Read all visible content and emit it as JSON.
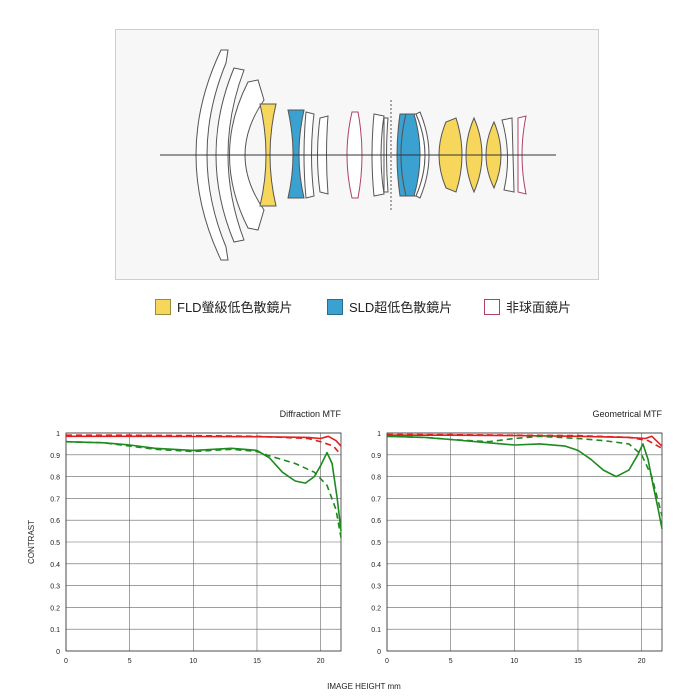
{
  "legend": [
    {
      "label": "FLD螢級低色散鏡片",
      "fill": "#f6d65b",
      "border": "#9a8a40"
    },
    {
      "label": "SLD超低色散鏡片",
      "fill": "#3aa1d0",
      "border": "#2a6c8c"
    },
    {
      "label": "非球面鏡片",
      "fill": "#ffffff",
      "border": "#b0406a"
    }
  ],
  "colors": {
    "red": "#e02020",
    "green": "#1e8a1e",
    "grid": "#666666",
    "lens_outline": "#555555"
  },
  "axis": {
    "xlabel": "IMAGE HEIGHT mm",
    "ylabel": "CONTRAST"
  },
  "chart_data": [
    {
      "type": "line",
      "title": "Diffraction MTF",
      "xlim": [
        0,
        21.6
      ],
      "ylim": [
        0,
        1
      ],
      "xticks": [
        0,
        5,
        10,
        15,
        20
      ],
      "yticks": [
        0,
        0.1,
        0.2,
        0.3,
        0.4,
        0.5,
        0.6,
        0.7,
        0.8,
        0.9,
        1
      ],
      "ytick_labels": [
        "0",
        "0.1",
        "0.2",
        "0.3",
        "0.4",
        "0.5",
        "0.6",
        "0.7",
        "0.8",
        "0.9",
        "1"
      ],
      "grid": true,
      "series": [
        {
          "color": "red",
          "dash": false,
          "x": [
            0,
            5,
            10,
            15,
            19,
            20,
            20.6,
            21.2,
            21.6
          ],
          "y": [
            0.985,
            0.985,
            0.984,
            0.983,
            0.98,
            0.975,
            0.985,
            0.965,
            0.94
          ]
        },
        {
          "color": "red",
          "dash": true,
          "x": [
            0,
            5,
            10,
            15,
            19,
            20,
            21,
            21.6
          ],
          "y": [
            0.99,
            0.99,
            0.988,
            0.985,
            0.975,
            0.96,
            0.94,
            0.9
          ]
        },
        {
          "color": "green",
          "dash": false,
          "x": [
            0,
            3,
            5,
            7,
            10,
            13,
            15,
            16,
            17,
            18,
            18.8,
            19.5,
            20,
            20.5,
            20.9,
            21.3,
            21.6
          ],
          "y": [
            0.96,
            0.955,
            0.945,
            0.93,
            0.92,
            0.93,
            0.92,
            0.885,
            0.82,
            0.78,
            0.77,
            0.8,
            0.85,
            0.91,
            0.86,
            0.7,
            0.55
          ]
        },
        {
          "color": "green",
          "dash": true,
          "x": [
            0,
            3,
            5,
            7,
            10,
            13,
            15,
            16,
            18,
            19.5,
            20.5,
            21.2,
            21.6
          ],
          "y": [
            0.96,
            0.955,
            0.94,
            0.925,
            0.915,
            0.925,
            0.915,
            0.895,
            0.86,
            0.82,
            0.76,
            0.65,
            0.52
          ]
        }
      ]
    },
    {
      "type": "line",
      "title": "Geometrical MTF",
      "xlim": [
        0,
        21.6
      ],
      "ylim": [
        0,
        1
      ],
      "xticks": [
        0,
        5,
        10,
        15,
        20
      ],
      "yticks": [
        0,
        0.1,
        0.2,
        0.3,
        0.4,
        0.5,
        0.6,
        0.7,
        0.8,
        0.9,
        1
      ],
      "ytick_labels": [
        "0",
        "0.1",
        "0.2",
        "0.3",
        "0.4",
        "0.5",
        "0.6",
        "0.7",
        "0.8",
        "0.9",
        "1"
      ],
      "grid": true,
      "series": [
        {
          "color": "red",
          "dash": false,
          "x": [
            0,
            5,
            10,
            15,
            19,
            20.3,
            20.8,
            21.6
          ],
          "y": [
            0.99,
            0.99,
            0.988,
            0.985,
            0.98,
            0.975,
            0.985,
            0.94
          ]
        },
        {
          "color": "red",
          "dash": true,
          "x": [
            0,
            5,
            10,
            15,
            19,
            20.5,
            21.6
          ],
          "y": [
            0.993,
            0.992,
            0.99,
            0.988,
            0.98,
            0.965,
            0.93
          ]
        },
        {
          "color": "green",
          "dash": false,
          "x": [
            0,
            3,
            5,
            8,
            10,
            12,
            14,
            15,
            16,
            17,
            18,
            19,
            19.7,
            20.1,
            20.5,
            20.9,
            21.3,
            21.6
          ],
          "y": [
            0.985,
            0.98,
            0.97,
            0.955,
            0.945,
            0.95,
            0.94,
            0.92,
            0.88,
            0.83,
            0.8,
            0.83,
            0.9,
            0.95,
            0.88,
            0.76,
            0.65,
            0.56
          ]
        },
        {
          "color": "green",
          "dash": true,
          "x": [
            0,
            3,
            5,
            8,
            10,
            12,
            15,
            17,
            19,
            20,
            20.8,
            21.6
          ],
          "y": [
            0.985,
            0.98,
            0.97,
            0.96,
            0.975,
            0.985,
            0.975,
            0.965,
            0.95,
            0.9,
            0.8,
            0.62
          ]
        }
      ]
    }
  ]
}
